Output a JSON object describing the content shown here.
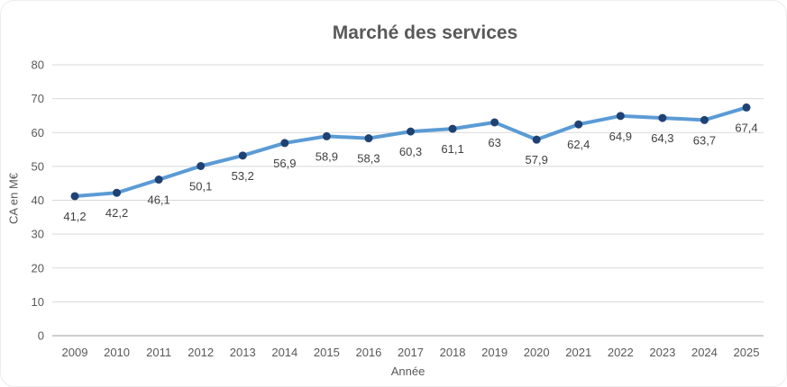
{
  "chart_data": {
    "type": "line",
    "title": "Marché des services",
    "xlabel": "Année",
    "ylabel": "CA en M€",
    "categories": [
      "2009",
      "2010",
      "2011",
      "2012",
      "2013",
      "2014",
      "2015",
      "2016",
      "2017",
      "2018",
      "2019",
      "2020",
      "2021",
      "2022",
      "2023",
      "2024",
      "2025"
    ],
    "values": [
      41.2,
      42.2,
      46.1,
      50.1,
      53.2,
      56.9,
      58.9,
      58.3,
      60.3,
      61.1,
      63,
      57.9,
      62.4,
      64.9,
      64.3,
      63.7,
      67.4
    ],
    "point_labels": [
      "41,2",
      "42,2",
      "46,1",
      "50,1",
      "53,2",
      "56,9",
      "58,9",
      "58,3",
      "60,3",
      "61,1",
      "63",
      "57,9",
      "62,4",
      "64,9",
      "64,3",
      "63,7",
      "67,4"
    ],
    "ylim": [
      0,
      80
    ],
    "ytick_step": 10,
    "ytick_labels": [
      "0",
      "10",
      "20",
      "30",
      "40",
      "50",
      "60",
      "70",
      "80"
    ],
    "grid": true,
    "legend": "none",
    "colors": {
      "line": "#5B9BD5",
      "marker": "#1F4273",
      "data_label": "#404040",
      "axis_text": "#595959",
      "gridline": "#D9D9D9",
      "axis_line": "#BFBFBF",
      "title": "#595959"
    }
  }
}
